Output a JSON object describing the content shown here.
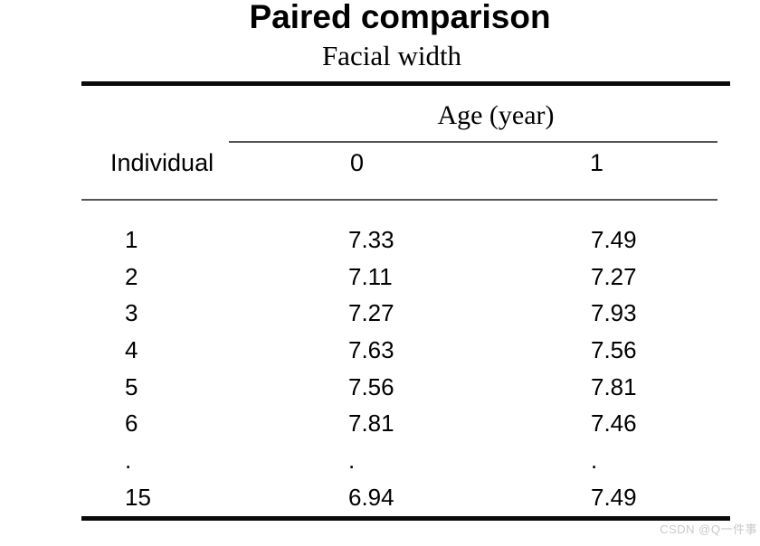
{
  "page": {
    "title": "Paired comparison",
    "subtitle": "Facial width"
  },
  "table": {
    "age_group_header": "Age (year)",
    "columns": {
      "individual": "Individual",
      "age0": "0",
      "age1": "1"
    },
    "rows": [
      {
        "individual": "1",
        "age0": "7.33",
        "age1": "7.49"
      },
      {
        "individual": "2",
        "age0": "7.11",
        "age1": "7.27"
      },
      {
        "individual": "3",
        "age0": "7.27",
        "age1": "7.93"
      },
      {
        "individual": "4",
        "age0": "7.63",
        "age1": "7.56"
      },
      {
        "individual": "5",
        "age0": "7.56",
        "age1": "7.81"
      },
      {
        "individual": "6",
        "age0": "7.81",
        "age1": "7.46"
      },
      {
        "individual": ".",
        "age0": ".",
        "age1": "."
      },
      {
        "individual": "15",
        "age0": "6.94",
        "age1": "7.49"
      }
    ]
  },
  "watermark": {
    "text": "CSDN @Q一件事"
  },
  "colors": {
    "background": "#ffffff",
    "text": "#000000",
    "rule_thick": "#0a0a0a",
    "rule_thin": "#555555",
    "watermark": "#c9c9c9"
  }
}
